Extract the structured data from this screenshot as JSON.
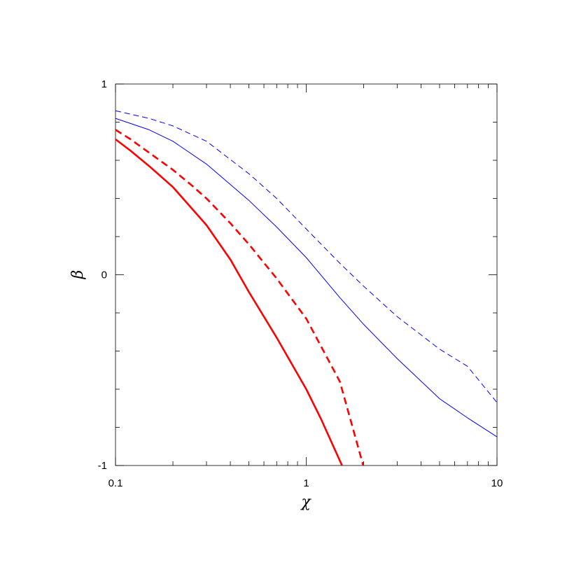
{
  "chart_data": {
    "type": "line",
    "xlabel": "χ",
    "ylabel": "β",
    "x_scale": "log",
    "xlim": [
      0.1,
      10
    ],
    "ylim": [
      -1,
      1
    ],
    "x_ticks": [
      {
        "value": 0.1,
        "label": "0.1"
      },
      {
        "value": 1,
        "label": "1"
      },
      {
        "value": 10,
        "label": "10"
      }
    ],
    "y_ticks": [
      {
        "value": -1,
        "label": "-1"
      },
      {
        "value": 0,
        "label": "0"
      },
      {
        "value": 1,
        "label": "1"
      }
    ],
    "y_minor_ticks": [
      -0.8,
      -0.6,
      -0.4,
      -0.2,
      0.2,
      0.4,
      0.6,
      0.8
    ],
    "grid": false,
    "series": [
      {
        "color": "#0000ff",
        "style": "dashed",
        "width": "thin",
        "x": [
          0.1,
          0.15,
          0.2,
          0.3,
          0.5,
          0.7,
          1,
          1.5,
          2,
          3,
          5,
          7,
          10
        ],
        "y": [
          0.86,
          0.82,
          0.78,
          0.7,
          0.53,
          0.4,
          0.24,
          0.06,
          -0.06,
          -0.22,
          -0.39,
          -0.48,
          -0.67
        ]
      },
      {
        "color": "#0000ff",
        "style": "solid",
        "width": "thin",
        "x": [
          0.1,
          0.15,
          0.2,
          0.3,
          0.5,
          0.7,
          1,
          1.5,
          2,
          3,
          5,
          7,
          10
        ],
        "y": [
          0.82,
          0.76,
          0.7,
          0.58,
          0.39,
          0.25,
          0.09,
          -0.12,
          -0.26,
          -0.44,
          -0.65,
          -0.75,
          -0.85
        ]
      },
      {
        "color": "#ff0000",
        "style": "dashed",
        "width": "thick",
        "x": [
          0.1,
          0.12,
          0.15,
          0.2,
          0.25,
          0.3,
          0.4,
          0.5,
          0.7,
          1,
          1.5,
          1.99
        ],
        "y": [
          0.76,
          0.71,
          0.64,
          0.55,
          0.47,
          0.4,
          0.27,
          0.16,
          -0.02,
          -0.23,
          -0.56,
          -1.0
        ]
      },
      {
        "color": "#ff0000",
        "style": "solid",
        "width": "thick",
        "x": [
          0.1,
          0.12,
          0.15,
          0.2,
          0.25,
          0.3,
          0.4,
          0.5,
          0.7,
          1,
          1.2,
          1.54
        ],
        "y": [
          0.71,
          0.65,
          0.57,
          0.46,
          0.35,
          0.26,
          0.08,
          -0.09,
          -0.33,
          -0.6,
          -0.76,
          -1.0
        ]
      }
    ]
  }
}
